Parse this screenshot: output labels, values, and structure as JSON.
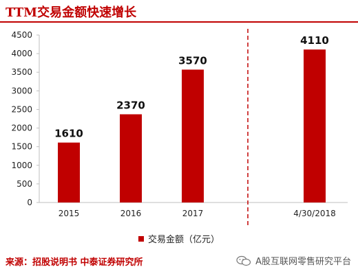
{
  "title": "TTM交易金额快速增长",
  "source": "来源：招股说明书 中泰证券研究所",
  "watermark": "A股互联网零售研究平台",
  "colors": {
    "bar": "#c00000",
    "accent": "#c00000",
    "axis": "#bfbfbf",
    "divider": "#c00000"
  },
  "chart_data": {
    "type": "bar",
    "categories": [
      "2015",
      "2016",
      "2017",
      "4/30/2018"
    ],
    "series": [
      {
        "name": "交易金额（亿元）",
        "values": [
          1610,
          2370,
          3570,
          4110
        ]
      }
    ],
    "data_labels": [
      "1610",
      "2370",
      "3570",
      "4110"
    ],
    "y_ticks": [
      "0",
      "500",
      "1000",
      "1500",
      "2000",
      "2500",
      "3000",
      "3500",
      "4000",
      "4500"
    ],
    "ylim": [
      0,
      4500
    ],
    "grid": false,
    "legend_position": "bottom",
    "divider": "dashed vertical line between 2017 and 4/30/2018"
  }
}
